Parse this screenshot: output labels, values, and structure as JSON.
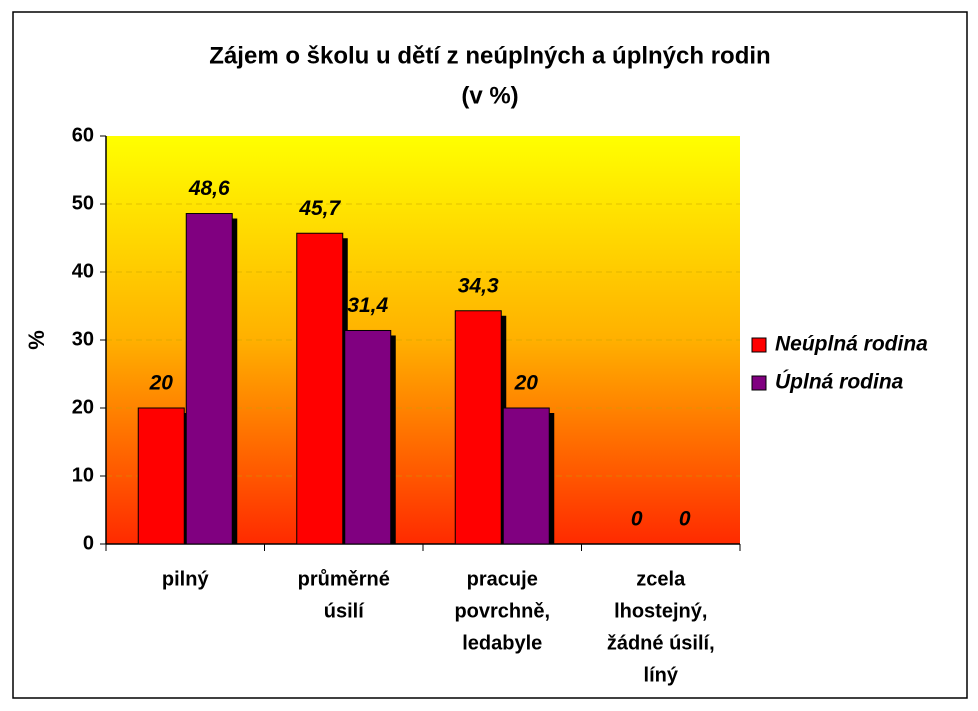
{
  "chart_data": {
    "type": "bar",
    "title": "Zájem o školu u dětí z neúplných a úplných rodin",
    "subtitle": "(v %)",
    "y_label": "%",
    "categories": [
      [
        "pilný"
      ],
      [
        "průměrné",
        "úsilí"
      ],
      [
        "pracuje",
        "povrchně,",
        "ledabyle"
      ],
      [
        "zcela",
        "lhostejný,",
        "žádné úsilí,",
        "líný"
      ]
    ],
    "series": [
      {
        "name": "Neúplná rodina",
        "color": "#ff0000",
        "values": [
          20,
          45.7,
          34.3,
          0
        ],
        "value_labels": [
          "20",
          "45,7",
          "34,3",
          "0"
        ]
      },
      {
        "name": "Úplná rodina",
        "color": "#800080",
        "values": [
          48.6,
          31.4,
          20,
          0
        ],
        "value_labels": [
          "48,6",
          "31,4",
          "20",
          "0"
        ]
      }
    ],
    "ylim": [
      0,
      60
    ],
    "yticks": [
      0,
      10,
      20,
      30,
      40,
      50,
      60
    ],
    "grid": true,
    "legend": "right"
  }
}
